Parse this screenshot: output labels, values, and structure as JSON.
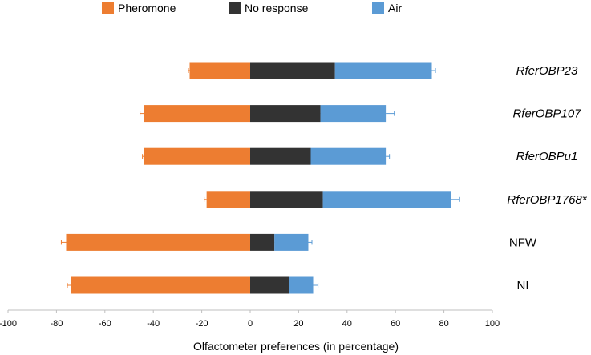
{
  "chart_data": {
    "type": "bar",
    "orientation": "horizontal",
    "stacked": true,
    "xlabel": "Olfactometer preferences (in percentage)",
    "xlim": [
      -100,
      100
    ],
    "xticks": [
      -100,
      -80,
      -60,
      -40,
      -20,
      0,
      20,
      40,
      60,
      80,
      100
    ],
    "legend_position": "top",
    "grid": false,
    "categories": [
      "RferOBP23",
      "RferOBP107",
      "RferOBPu1",
      "RferOBP1768*",
      "NFW",
      "NI"
    ],
    "category_italic": [
      true,
      true,
      true,
      true,
      false,
      false
    ],
    "series": [
      {
        "name": "Pheromone",
        "color": "#ED7D31",
        "direction": "negative",
        "values": [
          25,
          44,
          44,
          18,
          76,
          74
        ]
      },
      {
        "name": "No response",
        "color": "#333333",
        "direction": "positive",
        "values": [
          35,
          29,
          25,
          30,
          10,
          16
        ]
      },
      {
        "name": "Air",
        "color": "#5B9BD5",
        "direction": "positive",
        "values": [
          40,
          27,
          31,
          53,
          14,
          10
        ]
      }
    ],
    "error_bars": {
      "Pheromone": [
        0.5,
        1.5,
        0.5,
        1,
        2,
        1.5
      ],
      "No response": [
        2,
        2,
        2,
        4,
        2,
        2
      ],
      "Air": [
        1.5,
        3.5,
        1.5,
        3.5,
        1.5,
        2
      ]
    }
  }
}
